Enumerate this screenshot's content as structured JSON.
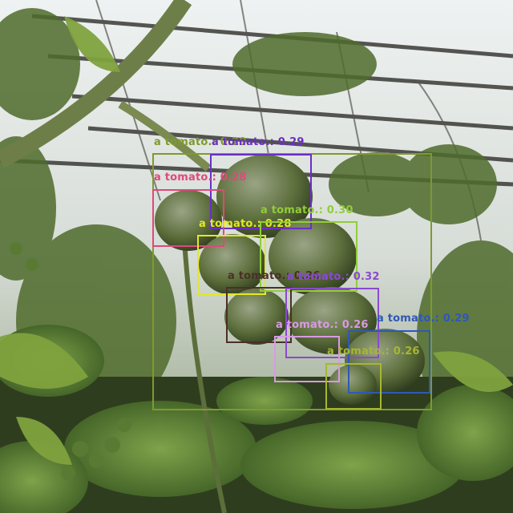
{
  "detections": [
    {
      "label": "a tomato.: 0.29",
      "color": "#7f9a2e"
    },
    {
      "label": "a tomato.: 0.29",
      "color": "#6a2fc4"
    },
    {
      "label": "a tomato.: 0.28",
      "color": "#e0487a"
    },
    {
      "label": "a tomato.: 0.28",
      "color": "#e4e822"
    },
    {
      "label": "a tomato.: 0.30",
      "color": "#92cc3a"
    },
    {
      "label": "a tomato.: 0.26",
      "color": "#4a3026"
    },
    {
      "label": "a tomato.: 0.32",
      "color": "#8a4ad0"
    },
    {
      "label": "a tomato.: 0.26",
      "color": "#d89ae4"
    },
    {
      "label": "a tomato.: 0.29",
      "color": "#2e58b8"
    },
    {
      "label": "a tomato.: 0.26",
      "color": "#a8b630"
    }
  ]
}
